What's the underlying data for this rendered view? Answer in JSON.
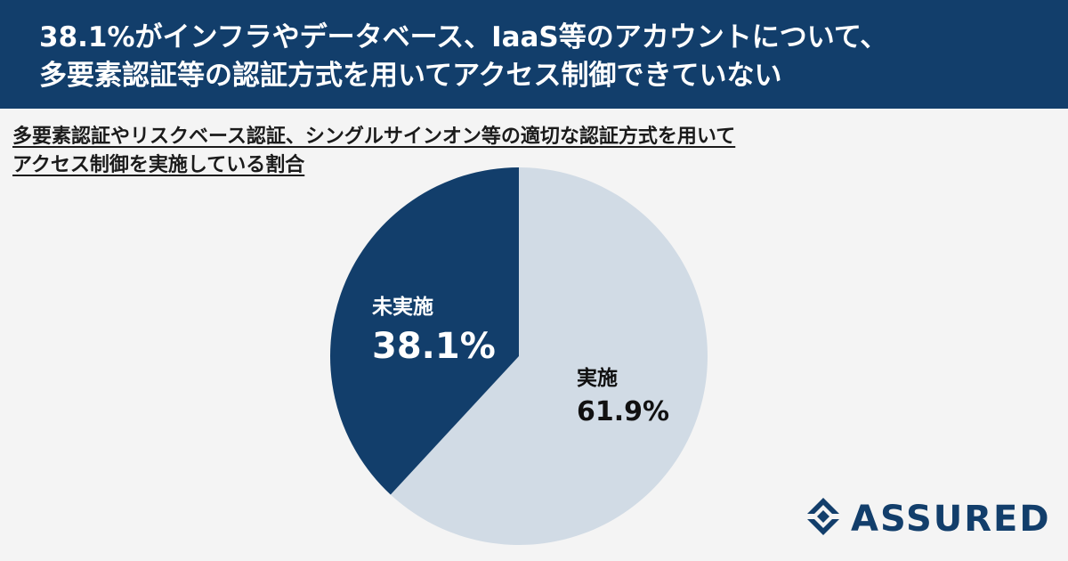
{
  "header": {
    "title_line1": "38.1%がインフラやデータベース、IaaS等のアカウントについて、",
    "title_line2": "多要素認証等の認証方式を用いてアクセス制御できていない"
  },
  "subtitle": {
    "line1": "多要素認証やリスクベース認証、シングルサインオン等の適切な認証方式を用いて",
    "line2": "アクセス制御を実施している割合"
  },
  "chart_data": {
    "type": "pie",
    "slices": [
      {
        "label": "実施",
        "value": 61.9,
        "value_text": "61.9%",
        "color": "#d1dbe5",
        "text_color": "#111111"
      },
      {
        "label": "未実施",
        "value": 38.1,
        "value_text": "38.1%",
        "color": "#123e6b",
        "text_color": "#ffffff"
      }
    ],
    "start_angle": "12 o'clock, clockwise"
  },
  "logo": {
    "text": "ASSURED",
    "color": "#123e6b",
    "icon": "assured-diamond-logo-icon"
  }
}
